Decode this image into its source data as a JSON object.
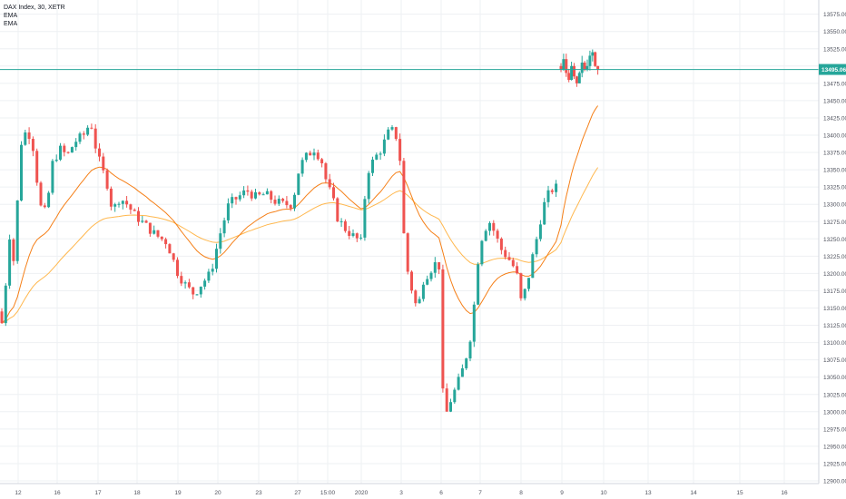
{
  "legend": {
    "symbol": "DAX Index, 30, XETR",
    "ema1": "EMA",
    "ema2": "EMA"
  },
  "colors": {
    "up": "#26a69a",
    "down": "#ef5350",
    "ema_fast": "#f57f17",
    "ema_slow": "#ffb74d",
    "grid": "#eef0f3",
    "price_line": "#26a69a",
    "axis_text": "#50535e"
  },
  "chart_data": {
    "type": "candlestick",
    "title": "DAX Index, 30, XETR",
    "y_axis": {
      "ticks": [
        "13575.00",
        "13550.00",
        "13525.00",
        "13500.00",
        "13475.00",
        "13450.00",
        "13425.00",
        "13400.00",
        "13375.00",
        "13350.00",
        "13325.00",
        "13300.00",
        "13275.00",
        "13250.00",
        "13225.00",
        "13200.00",
        "13175.00",
        "13150.00",
        "13125.00",
        "13100.00",
        "13075.00",
        "13050.00",
        "13025.00",
        "13000.00",
        "12975.00",
        "12950.00",
        "12925.00",
        "12900.00"
      ],
      "ylim": [
        12895,
        13590
      ]
    },
    "x_axis": {
      "ticks": [
        "12",
        "16",
        "17",
        "18",
        "19",
        "20",
        "23",
        "27",
        "15:00",
        "2020",
        "3",
        "6",
        "7",
        "8",
        "9",
        "10",
        "13",
        "14",
        "15",
        "16"
      ]
    },
    "last_price": "13495.06",
    "series": [
      {
        "name": "DAX Index",
        "type": "ohlc",
        "x": [],
        "open": [],
        "high": [],
        "low": [],
        "close": []
      },
      {
        "name": "EMA",
        "type": "line",
        "values": []
      },
      {
        "name": "EMA",
        "type": "line",
        "values": []
      }
    ],
    "grid": true
  }
}
